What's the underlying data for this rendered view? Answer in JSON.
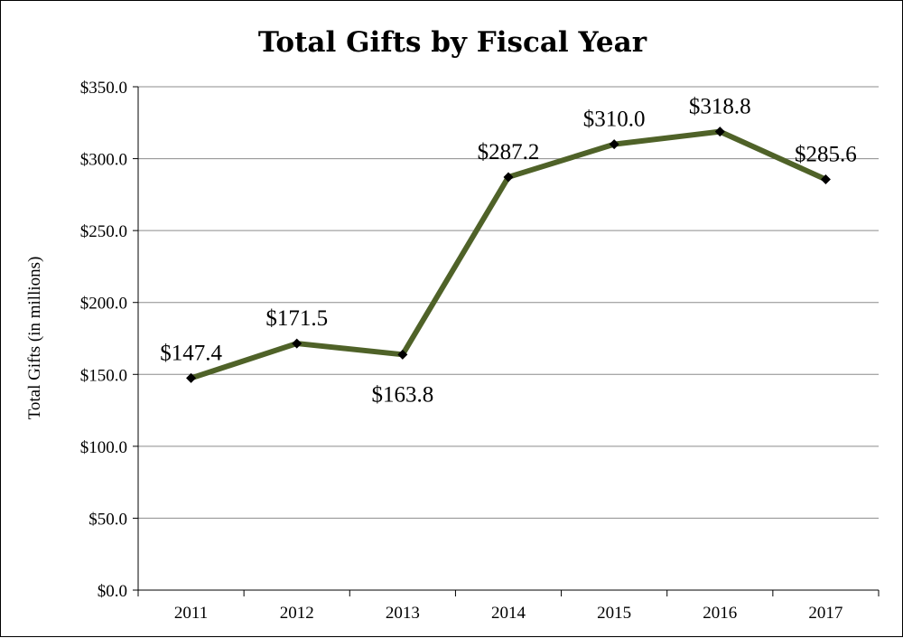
{
  "chart_data": {
    "type": "line",
    "title": "Total Gifts by Fiscal Year",
    "xlabel": "",
    "ylabel": "Total Gifts (in millions)",
    "categories": [
      "2011",
      "2012",
      "2013",
      "2014",
      "2015",
      "2016",
      "2017"
    ],
    "series": [
      {
        "values": [
          147.4,
          171.5,
          163.8,
          287.2,
          310.0,
          318.8,
          285.6
        ],
        "data_labels": [
          "$147.4",
          "$171.5",
          "$163.8",
          "$287.2",
          "$310.0",
          "$318.8",
          "$285.6"
        ],
        "color": "#4f6228",
        "marker": "diamond",
        "marker_color": "#000000"
      }
    ],
    "ylim": [
      0,
      350
    ],
    "yticks": [
      0,
      50,
      100,
      150,
      200,
      250,
      300,
      350
    ],
    "ytick_labels": [
      "$0.0",
      "$50.0",
      "$100.0",
      "$150.0",
      "$200.0",
      "$250.0",
      "$300.0",
      "$350.0"
    ],
    "grid": true,
    "gridline_color": "#8c8c8c",
    "legend": "none"
  }
}
